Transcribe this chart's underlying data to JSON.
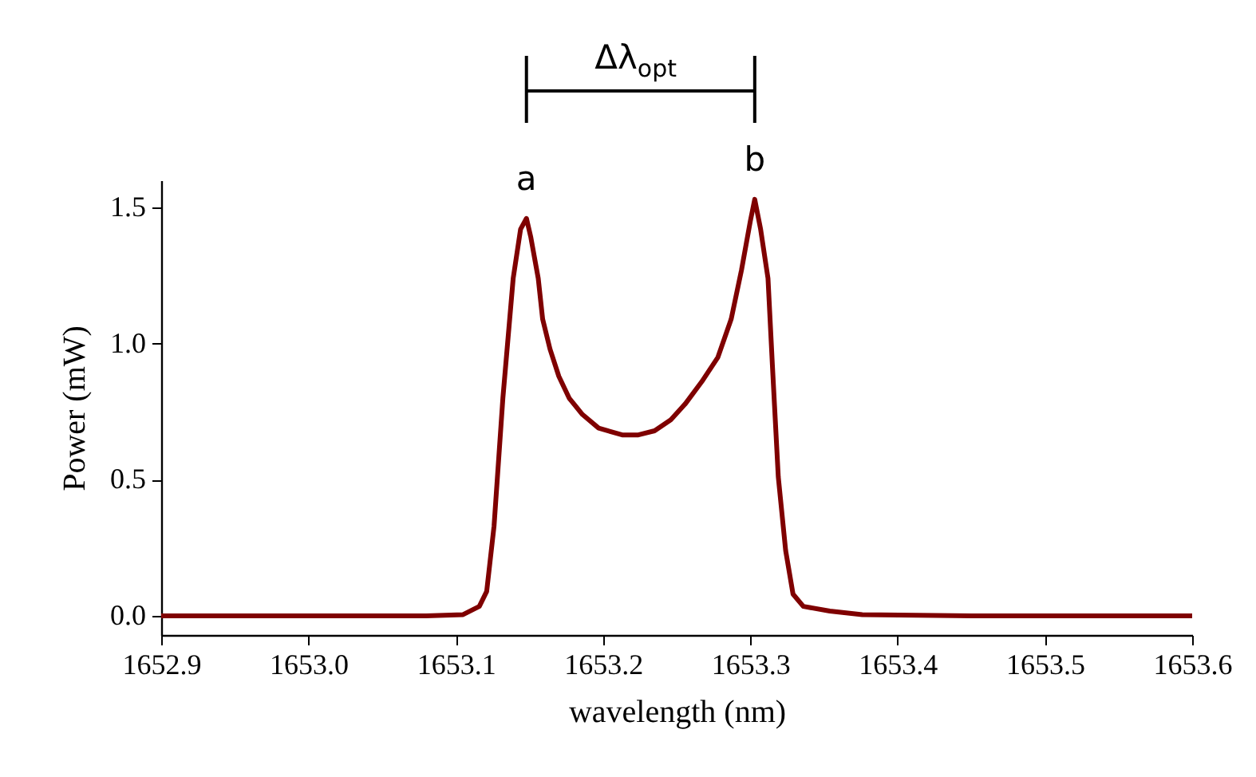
{
  "chart_data": {
    "type": "line",
    "xlabel": "wavelength (nm)",
    "ylabel": "Power (mW)",
    "color": "#7f0000",
    "x": [
      1652.9,
      1653.0,
      1653.08,
      1653.105,
      1653.116,
      1653.121,
      1653.126,
      1653.132,
      1653.139,
      1653.144,
      1653.148,
      1653.151,
      1653.156,
      1653.159,
      1653.164,
      1653.17,
      1653.177,
      1653.186,
      1653.197,
      1653.213,
      1653.224,
      1653.235,
      1653.246,
      1653.256,
      1653.267,
      1653.278,
      1653.287,
      1653.294,
      1653.3,
      1653.303,
      1653.307,
      1653.312,
      1653.315,
      1653.319,
      1653.324,
      1653.329,
      1653.336,
      1653.354,
      1653.376,
      1653.45,
      1653.6
    ],
    "values": [
      0,
      0,
      0,
      0.005,
      0.035,
      0.09,
      0.33,
      0.8,
      1.24,
      1.42,
      1.46,
      1.39,
      1.24,
      1.09,
      0.98,
      0.88,
      0.8,
      0.74,
      0.69,
      0.665,
      0.665,
      0.68,
      0.72,
      0.78,
      0.86,
      0.95,
      1.09,
      1.27,
      1.45,
      1.53,
      1.42,
      1.24,
      0.92,
      0.51,
      0.24,
      0.08,
      0.035,
      0.018,
      0.005,
      0,
      0
    ],
    "xlim": [
      1652.9,
      1653.6
    ],
    "ylim": [
      -0.07,
      1.6
    ],
    "xticks": [
      1652.9,
      {
        "value": 1653.0,
        "label": "1653.0"
      },
      1653.1,
      1653.2,
      1653.3,
      1653.4,
      1653.5,
      1653.6
    ],
    "yticks": [
      {
        "value": 0,
        "label": "0.0"
      },
      {
        "value": 0.5,
        "label": "0.5"
      },
      {
        "value": 1,
        "label": "1.0"
      },
      {
        "value": 1.5,
        "label": "1.5"
      }
    ],
    "annotations": [
      {
        "text": "a",
        "x": 1653.148,
        "y": 1.46
      },
      {
        "text": "b",
        "x": 1653.303,
        "y": 1.53
      },
      "Δλ$_{opt}$"
    ]
  }
}
